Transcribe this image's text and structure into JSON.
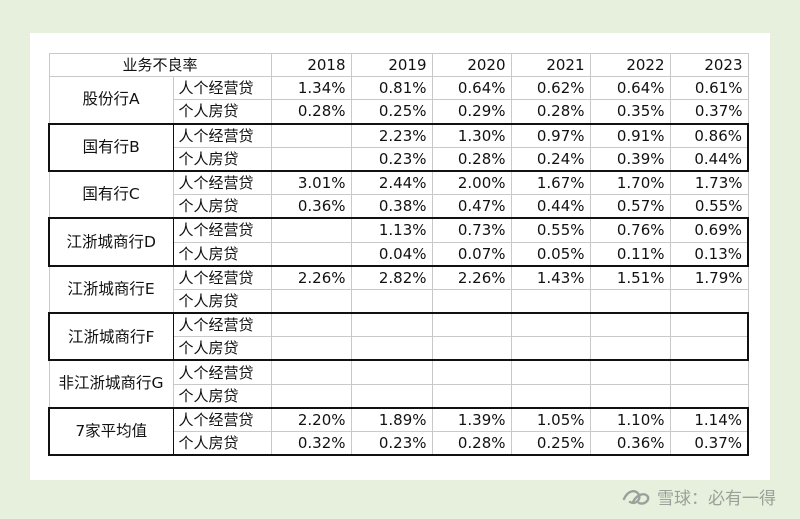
{
  "table": {
    "title": "业务不良率",
    "years": [
      "2018",
      "2019",
      "2020",
      "2021",
      "2022",
      "2023"
    ],
    "groups": [
      {
        "name": "股份行A",
        "boxed": false,
        "rows": [
          {
            "category": "人个经营贷",
            "values": [
              "1.34%",
              "0.81%",
              "0.64%",
              "0.62%",
              "0.64%",
              "0.61%"
            ]
          },
          {
            "category": "个人房贷",
            "values": [
              "0.28%",
              "0.25%",
              "0.29%",
              "0.28%",
              "0.35%",
              "0.37%"
            ]
          }
        ]
      },
      {
        "name": "国有行B",
        "boxed": true,
        "rows": [
          {
            "category": "人个经营贷",
            "values": [
              "",
              "2.23%",
              "1.30%",
              "0.97%",
              "0.91%",
              "0.86%"
            ]
          },
          {
            "category": "个人房贷",
            "values": [
              "",
              "0.23%",
              "0.28%",
              "0.24%",
              "0.39%",
              "0.44%"
            ]
          }
        ]
      },
      {
        "name": "国有行C",
        "boxed": false,
        "rows": [
          {
            "category": "人个经营贷",
            "values": [
              "3.01%",
              "2.44%",
              "2.00%",
              "1.67%",
              "1.70%",
              "1.73%"
            ]
          },
          {
            "category": "个人房贷",
            "values": [
              "0.36%",
              "0.38%",
              "0.47%",
              "0.44%",
              "0.57%",
              "0.55%"
            ]
          }
        ]
      },
      {
        "name": "江浙城商行D",
        "boxed": true,
        "rows": [
          {
            "category": "人个经营贷",
            "values": [
              "",
              "1.13%",
              "0.73%",
              "0.55%",
              "0.76%",
              "0.69%"
            ]
          },
          {
            "category": "个人房贷",
            "values": [
              "",
              "0.04%",
              "0.07%",
              "0.05%",
              "0.11%",
              "0.13%"
            ]
          }
        ]
      },
      {
        "name": "江浙城商行E",
        "boxed": false,
        "rows": [
          {
            "category": "人个经营贷",
            "values": [
              "2.26%",
              "2.82%",
              "2.26%",
              "1.43%",
              "1.51%",
              "1.79%"
            ]
          },
          {
            "category": "个人房贷",
            "values": [
              "",
              "",
              "",
              "",
              "",
              ""
            ]
          }
        ]
      },
      {
        "name": "江浙城商行F",
        "boxed": true,
        "rows": [
          {
            "category": "人个经营贷",
            "values": [
              "",
              "",
              "",
              "",
              "",
              ""
            ]
          },
          {
            "category": "个人房贷",
            "values": [
              "",
              "",
              "",
              "",
              "",
              ""
            ]
          }
        ]
      },
      {
        "name": "非江浙城商行G",
        "boxed": false,
        "rows": [
          {
            "category": "人个经营贷",
            "values": [
              "",
              "",
              "",
              "",
              "",
              ""
            ]
          },
          {
            "category": "个人房贷",
            "values": [
              "",
              "",
              "",
              "",
              "",
              ""
            ]
          }
        ]
      },
      {
        "name": "7家平均值",
        "boxed": true,
        "rows": [
          {
            "category": "人个经营贷",
            "values": [
              "2.20%",
              "1.89%",
              "1.39%",
              "1.05%",
              "1.10%",
              "1.14%"
            ]
          },
          {
            "category": "个人房贷",
            "values": [
              "0.32%",
              "0.23%",
              "0.28%",
              "0.25%",
              "0.36%",
              "0.37%"
            ]
          }
        ]
      }
    ]
  },
  "watermark": {
    "text": "雪球：必有一得",
    "icon": "snowball-logo-icon"
  }
}
